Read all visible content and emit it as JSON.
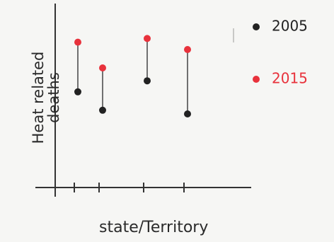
{
  "chart_data": {
    "type": "dumbbell",
    "x_label": "state/Territory",
    "y_label": "Heat related deaths",
    "categories": [
      null,
      null,
      null,
      null
    ],
    "ylim": [
      0,
      100
    ],
    "series": [
      {
        "name": "2005",
        "color": "#222222",
        "values": [
          52,
          42,
          58,
          40
        ]
      },
      {
        "name": "2015",
        "color": "#e8323c",
        "values": [
          79,
          65,
          81,
          75
        ]
      }
    ]
  }
}
